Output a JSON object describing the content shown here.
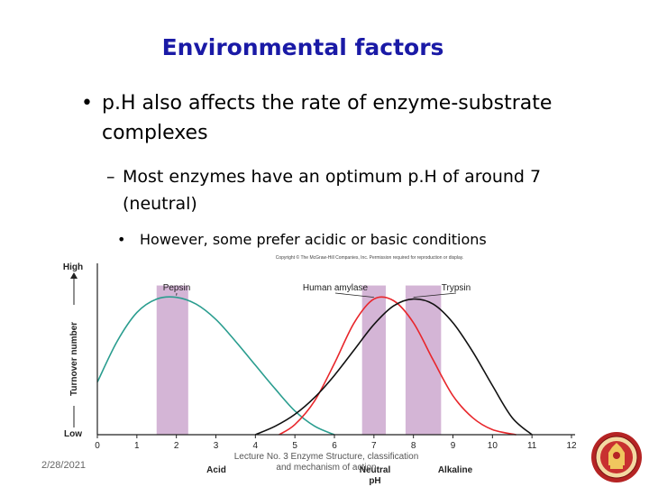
{
  "slide": {
    "title": "Environmental factors",
    "bullet1": "p.H also affects the rate of enzyme-substrate complexes",
    "bullet2": "Most enzymes have an optimum p.H of around 7 (neutral)",
    "bullet3": "However, some prefer acidic or basic conditions"
  },
  "footer": {
    "date": "2/28/2021",
    "lecture": "Lecture No. 3 Enzyme Structure, classification and mechanism of action"
  },
  "colors": {
    "title": "#1a1aa6",
    "pepsin": "#2a9d8f",
    "amylase": "#e8262b",
    "trypsin": "#111111",
    "optimum_band": "#d4b5d6"
  },
  "chart_data": {
    "type": "line",
    "copyright": "Copyright © The McGraw-Hill Companies, Inc. Permission required for reproduction or display.",
    "xlabel": "pH",
    "ylabel": "Turnover number",
    "y_high_label": "High",
    "y_low_label": "Low",
    "acid_label": "Acid",
    "neutral_label": "Neutral",
    "alkaline_label": "Alkaline",
    "xlim": [
      0,
      12
    ],
    "ylim": [
      0,
      1
    ],
    "xticks": [
      "0",
      "1",
      "2",
      "3",
      "4",
      "5",
      "6",
      "7",
      "8",
      "9",
      "10",
      "11",
      "12"
    ],
    "series": [
      {
        "name": "Pepsin",
        "color": "#2a9d8f",
        "optimum_band": [
          1.5,
          2.3
        ],
        "x": [
          0,
          0.5,
          1,
          1.5,
          2,
          2.5,
          3,
          3.5,
          4,
          4.5,
          5,
          5.5,
          6
        ],
        "y": [
          0.31,
          0.55,
          0.72,
          0.8,
          0.81,
          0.77,
          0.68,
          0.55,
          0.41,
          0.27,
          0.14,
          0.05,
          0.0
        ]
      },
      {
        "name": "Human amylase",
        "color": "#e8262b",
        "optimum_band": [
          6.7,
          7.3
        ],
        "x": [
          4.6,
          5,
          5.5,
          6,
          6.5,
          7,
          7.5,
          8,
          8.5,
          9,
          9.5,
          10,
          10.6
        ],
        "y": [
          0.0,
          0.06,
          0.2,
          0.42,
          0.66,
          0.8,
          0.79,
          0.66,
          0.44,
          0.23,
          0.1,
          0.03,
          0.0
        ]
      },
      {
        "name": "Trypsin",
        "color": "#111111",
        "optimum_band": [
          7.8,
          8.7
        ],
        "x": [
          4,
          4.5,
          5,
          5.5,
          6,
          6.5,
          7,
          7.5,
          8,
          8.5,
          9,
          9.5,
          10,
          10.5,
          11
        ],
        "y": [
          0.0,
          0.05,
          0.12,
          0.22,
          0.35,
          0.5,
          0.65,
          0.76,
          0.8,
          0.77,
          0.66,
          0.49,
          0.29,
          0.1,
          0.0
        ]
      }
    ],
    "grid": false,
    "legend": "labels above curves"
  }
}
